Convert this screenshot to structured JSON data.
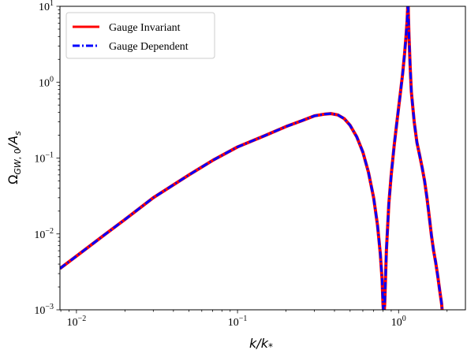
{
  "chart_data": {
    "type": "line",
    "xlabel": "k/k*",
    "ylabel": "Ω_GW,0/A_s",
    "xscale": "log",
    "yscale": "log",
    "xlim": [
      0.0079,
      2.6
    ],
    "ylim": [
      0.001,
      10
    ],
    "grid": false,
    "legend_position": "upper-left",
    "x_ticks": [
      {
        "value": 0.01,
        "label": "10",
        "exp": "−2"
      },
      {
        "value": 0.1,
        "label": "10",
        "exp": "−1"
      },
      {
        "value": 1,
        "label": "10",
        "exp": "0"
      }
    ],
    "y_ticks": [
      {
        "value": 0.001,
        "label": "10",
        "exp": "−3"
      },
      {
        "value": 0.01,
        "label": "10",
        "exp": "−2"
      },
      {
        "value": 0.1,
        "label": "10",
        "exp": "−1"
      },
      {
        "value": 1,
        "label": "10",
        "exp": "0"
      },
      {
        "value": 10,
        "label": "10",
        "exp": "1"
      }
    ],
    "series": [
      {
        "name": "Gauge Invariant",
        "color": "#ff0000",
        "style": "solid",
        "x": [
          0.0079,
          0.01,
          0.015,
          0.02,
          0.03,
          0.05,
          0.07,
          0.1,
          0.15,
          0.2,
          0.25,
          0.3,
          0.35,
          0.38,
          0.42,
          0.46,
          0.5,
          0.55,
          0.6,
          0.65,
          0.7,
          0.74,
          0.77,
          0.79,
          0.8,
          0.81,
          0.82,
          0.84,
          0.87,
          0.9,
          0.94,
          0.98,
          1.02,
          1.06,
          1.09,
          1.11,
          1.13,
          1.14,
          1.145,
          1.15,
          1.16,
          1.18,
          1.2,
          1.25,
          1.3,
          1.35,
          1.4,
          1.45,
          1.5,
          1.55,
          1.6,
          1.65,
          1.7,
          1.75,
          1.8,
          1.85,
          1.88
        ],
        "y": [
          0.0035,
          0.0051,
          0.0098,
          0.0155,
          0.03,
          0.06,
          0.093,
          0.14,
          0.2,
          0.26,
          0.31,
          0.36,
          0.38,
          0.385,
          0.37,
          0.33,
          0.27,
          0.19,
          0.12,
          0.065,
          0.03,
          0.013,
          0.0055,
          0.0025,
          0.0012,
          0.0008,
          0.0012,
          0.006,
          0.025,
          0.06,
          0.15,
          0.32,
          0.65,
          1.3,
          2.4,
          3.8,
          6.5,
          10,
          12,
          8,
          4.2,
          1.6,
          0.75,
          0.3,
          0.16,
          0.11,
          0.075,
          0.05,
          0.03,
          0.017,
          0.0095,
          0.006,
          0.0042,
          0.0028,
          0.0018,
          0.0012,
          0.0008
        ]
      },
      {
        "name": "Gauge Dependent",
        "color": "#0000ff",
        "style": "dashdot",
        "x": [
          0.0079,
          0.01,
          0.015,
          0.02,
          0.03,
          0.05,
          0.07,
          0.1,
          0.15,
          0.2,
          0.25,
          0.3,
          0.35,
          0.38,
          0.42,
          0.46,
          0.5,
          0.55,
          0.6,
          0.65,
          0.7,
          0.74,
          0.77,
          0.79,
          0.8,
          0.81,
          0.82,
          0.84,
          0.87,
          0.9,
          0.94,
          0.98,
          1.02,
          1.06,
          1.09,
          1.11,
          1.13,
          1.14,
          1.145,
          1.15,
          1.16,
          1.18,
          1.2,
          1.25,
          1.3,
          1.35,
          1.4,
          1.45,
          1.5,
          1.55,
          1.6,
          1.65,
          1.7,
          1.75,
          1.8,
          1.85,
          1.88
        ],
        "y": [
          0.0035,
          0.0051,
          0.0098,
          0.0155,
          0.03,
          0.06,
          0.093,
          0.14,
          0.2,
          0.26,
          0.31,
          0.36,
          0.38,
          0.385,
          0.37,
          0.33,
          0.27,
          0.19,
          0.12,
          0.065,
          0.03,
          0.013,
          0.0055,
          0.0025,
          0.0012,
          0.0008,
          0.0012,
          0.006,
          0.025,
          0.06,
          0.15,
          0.32,
          0.65,
          1.3,
          2.4,
          3.8,
          6.5,
          10,
          12,
          8,
          4.2,
          1.6,
          0.75,
          0.3,
          0.16,
          0.11,
          0.075,
          0.05,
          0.03,
          0.017,
          0.0095,
          0.006,
          0.0042,
          0.0028,
          0.0018,
          0.0012,
          0.0008
        ]
      }
    ]
  }
}
